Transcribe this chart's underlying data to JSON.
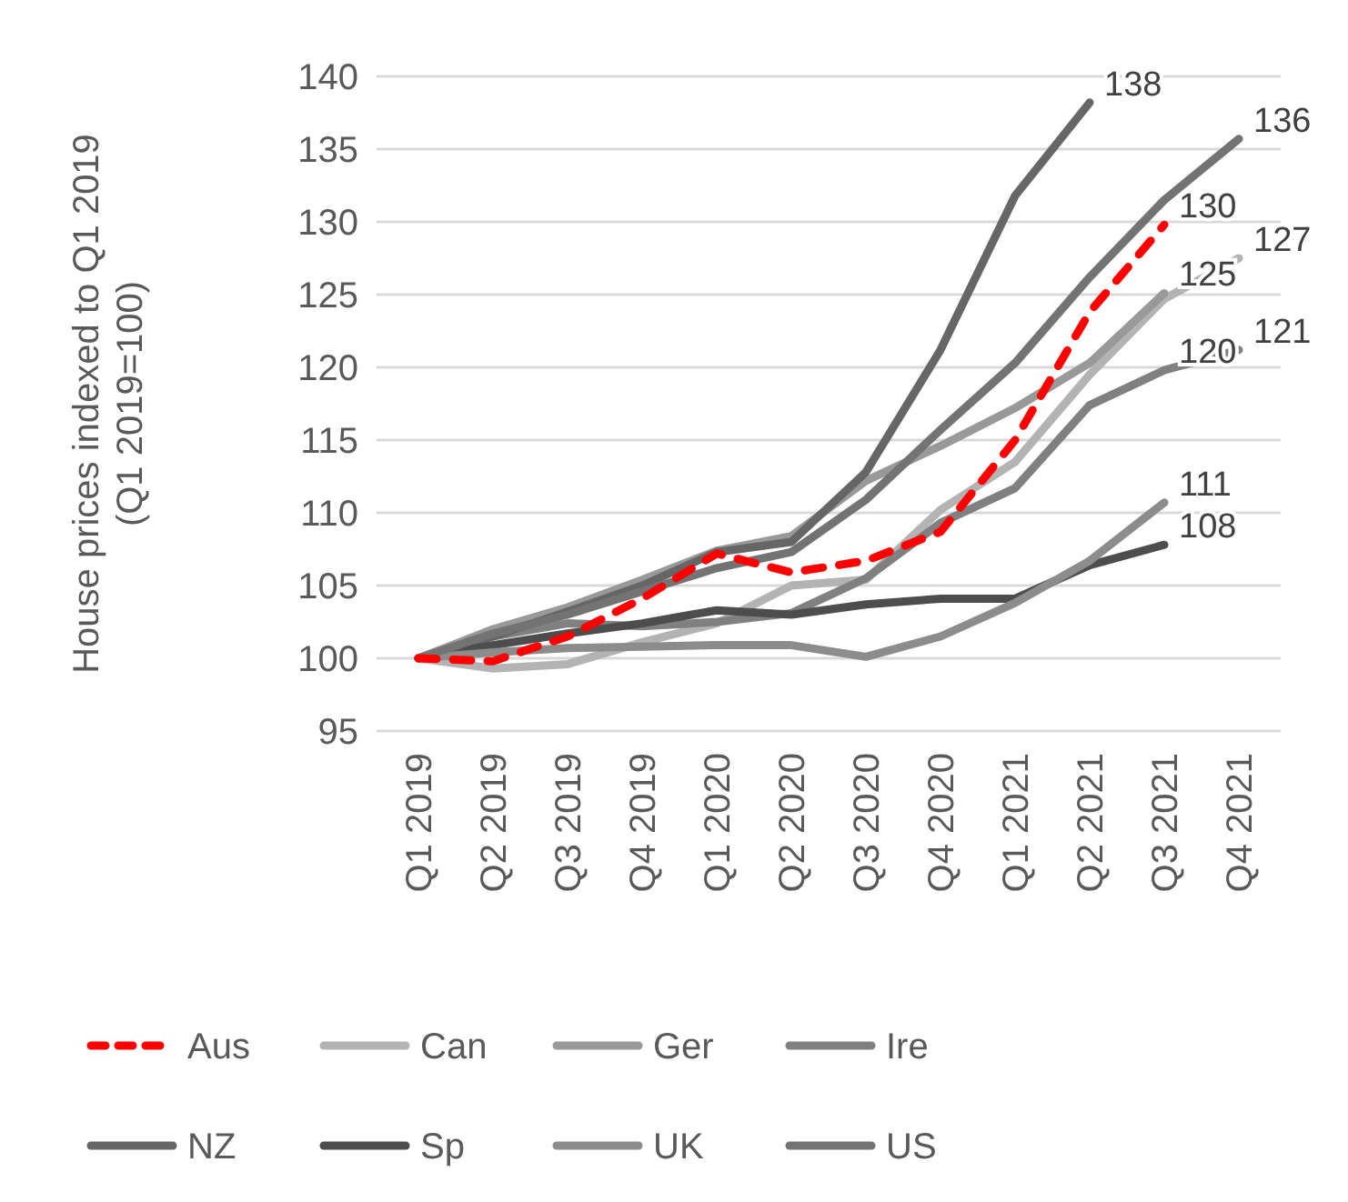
{
  "chart_data": {
    "type": "line",
    "ylabel": "House prices indexed to Q1 2019 (Q1 2019=100)",
    "categories": [
      "Q1 2019",
      "Q2 2019",
      "Q3 2019",
      "Q4 2019",
      "Q1 2020",
      "Q2 2020",
      "Q3 2020",
      "Q4 2020",
      "Q1 2021",
      "Q2 2021",
      "Q3 2021",
      "Q4 2021"
    ],
    "ylim": [
      95,
      140
    ],
    "yticks": [
      95,
      100,
      105,
      110,
      115,
      120,
      125,
      130,
      135,
      140
    ],
    "grid": "y",
    "legend": "bottom",
    "marker": "none",
    "series": [
      {
        "name": "Aus",
        "color": "#ff0000",
        "line_style": "dashed",
        "values": [
          100,
          99.8,
          101.5,
          104.1,
          107.2,
          105.9,
          106.7,
          108.7,
          115,
          123.8,
          129.8,
          null
        ],
        "value_labels": [
          null,
          null,
          null,
          null,
          null,
          null,
          null,
          null,
          null,
          null,
          "130",
          null
        ]
      },
      {
        "name": "Can",
        "color": "#b3b3b3",
        "values": [
          100,
          99.3,
          99.6,
          101.1,
          102.4,
          105,
          105.4,
          110.2,
          113.5,
          119.5,
          124.7,
          127.5
        ],
        "value_labels": [
          null,
          null,
          null,
          null,
          null,
          null,
          null,
          null,
          null,
          null,
          null,
          "127"
        ]
      },
      {
        "name": "Ger",
        "color": "#999999",
        "values": [
          100,
          102,
          103.5,
          105.4,
          107.4,
          108.4,
          112.2,
          114.6,
          117.2,
          120.3,
          125.1,
          null
        ],
        "value_labels": [
          null,
          null,
          null,
          null,
          null,
          null,
          null,
          null,
          null,
          null,
          "125",
          null
        ]
      },
      {
        "name": "Ire",
        "color": "#808080",
        "values": [
          100,
          101.5,
          102.4,
          102.2,
          102.5,
          103.1,
          105.5,
          109.3,
          111.7,
          117.4,
          119.8,
          121.2
        ],
        "value_labels": [
          null,
          null,
          null,
          null,
          null,
          null,
          null,
          null,
          null,
          null,
          "120",
          "121"
        ]
      },
      {
        "name": "NZ",
        "color": "#666666",
        "values": [
          100,
          101.5,
          103.2,
          105,
          107.3,
          108,
          112.8,
          121.2,
          131.8,
          138.2,
          null,
          null
        ],
        "value_labels": [
          null,
          null,
          null,
          null,
          null,
          null,
          null,
          null,
          null,
          "138",
          null,
          null
        ]
      },
      {
        "name": "Sp",
        "color": "#4d4d4d",
        "values": [
          100,
          100.9,
          101.7,
          102.4,
          103.3,
          103,
          103.7,
          104.1,
          104.1,
          106.4,
          107.8,
          null
        ],
        "value_labels": [
          null,
          null,
          null,
          null,
          null,
          null,
          null,
          null,
          null,
          null,
          "108",
          null
        ]
      },
      {
        "name": "UK",
        "color": "#8c8c8c",
        "values": [
          100,
          100.4,
          100.7,
          100.8,
          100.9,
          100.9,
          100.1,
          101.5,
          103.8,
          106.7,
          110.7,
          null
        ],
        "value_labels": [
          null,
          null,
          null,
          null,
          null,
          null,
          null,
          null,
          null,
          null,
          "111",
          null
        ]
      },
      {
        "name": "US",
        "color": "#737373",
        "values": [
          100,
          101.7,
          103,
          104.6,
          106.2,
          107.3,
          110.9,
          115.7,
          120.3,
          126.2,
          131.5,
          135.7
        ],
        "value_labels": [
          null,
          null,
          null,
          null,
          null,
          null,
          null,
          null,
          null,
          null,
          null,
          "136"
        ]
      }
    ]
  }
}
